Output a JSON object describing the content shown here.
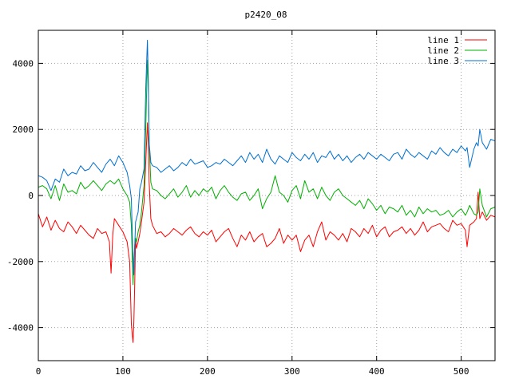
{
  "chart_data": {
    "type": "line",
    "title": "p2420_08",
    "xlabel": "",
    "ylabel": "",
    "xlim": [
      0,
      540
    ],
    "ylim": [
      -5000,
      5000
    ],
    "xticks": [
      0,
      100,
      200,
      300,
      400,
      500
    ],
    "yticks": [
      -4000,
      -2000,
      0,
      2000,
      4000
    ],
    "grid": true,
    "legend_position": "top-right",
    "series": [
      {
        "name": "line 1",
        "color": "#ff0000",
        "x": [
          0,
          5,
          10,
          15,
          20,
          25,
          30,
          35,
          40,
          45,
          50,
          55,
          60,
          65,
          70,
          75,
          80,
          84,
          86,
          88,
          90,
          95,
          100,
          105,
          108,
          110,
          112,
          113,
          114,
          115,
          116,
          118,
          120,
          122,
          125,
          127,
          129,
          130,
          131,
          133,
          135,
          140,
          145,
          150,
          155,
          160,
          165,
          170,
          175,
          180,
          185,
          190,
          195,
          200,
          205,
          210,
          215,
          220,
          225,
          230,
          235,
          240,
          245,
          250,
          255,
          260,
          265,
          270,
          275,
          280,
          285,
          290,
          295,
          300,
          305,
          310,
          315,
          320,
          325,
          330,
          335,
          340,
          345,
          350,
          355,
          360,
          365,
          370,
          375,
          380,
          385,
          390,
          395,
          400,
          405,
          410,
          415,
          420,
          425,
          430,
          435,
          440,
          445,
          450,
          455,
          460,
          465,
          470,
          475,
          480,
          485,
          490,
          495,
          500,
          505,
          507,
          510,
          515,
          518,
          520,
          522,
          525,
          530,
          535,
          540
        ],
        "y": [
          -550,
          -950,
          -650,
          -1050,
          -750,
          -1000,
          -1100,
          -800,
          -950,
          -1150,
          -900,
          -1050,
          -1200,
          -1300,
          -1000,
          -1150,
          -1100,
          -1400,
          -2350,
          -1200,
          -700,
          -900,
          -1100,
          -1400,
          -2000,
          -3900,
          -4450,
          -3800,
          -2600,
          -1300,
          -1600,
          -1400,
          -1150,
          -800,
          -200,
          1000,
          2200,
          1600,
          400,
          -700,
          -900,
          -1150,
          -1100,
          -1250,
          -1150,
          -1000,
          -1100,
          -1200,
          -1050,
          -950,
          -1150,
          -1250,
          -1100,
          -1200,
          -1050,
          -1400,
          -1250,
          -1100,
          -1000,
          -1300,
          -1550,
          -1200,
          -1350,
          -1100,
          -1400,
          -1250,
          -1150,
          -1550,
          -1450,
          -1300,
          -1000,
          -1450,
          -1200,
          -1350,
          -1200,
          -1700,
          -1350,
          -1200,
          -1550,
          -1100,
          -800,
          -1350,
          -1100,
          -1200,
          -1350,
          -1150,
          -1400,
          -1000,
          -1100,
          -1250,
          -1000,
          -1150,
          -900,
          -1250,
          -1050,
          -950,
          -1250,
          -1100,
          -1050,
          -950,
          -1150,
          -1000,
          -1200,
          -1050,
          -800,
          -1100,
          -950,
          -900,
          -850,
          -1000,
          -1100,
          -750,
          -900,
          -850,
          -1050,
          -1550,
          -900,
          -800,
          -700,
          100,
          -700,
          -500,
          -750,
          -600,
          -650
        ]
      },
      {
        "name": "line 2",
        "color": "#00b000",
        "x": [
          0,
          5,
          10,
          15,
          20,
          25,
          30,
          35,
          40,
          45,
          50,
          55,
          60,
          65,
          70,
          75,
          80,
          85,
          90,
          95,
          100,
          105,
          108,
          110,
          112,
          113,
          114,
          115,
          116,
          118,
          120,
          122,
          125,
          127,
          129,
          130,
          131,
          133,
          135,
          140,
          145,
          150,
          155,
          160,
          165,
          170,
          175,
          180,
          185,
          190,
          195,
          200,
          205,
          210,
          215,
          220,
          225,
          230,
          235,
          240,
          245,
          250,
          255,
          260,
          265,
          270,
          275,
          280,
          285,
          290,
          295,
          300,
          305,
          310,
          315,
          320,
          325,
          330,
          335,
          340,
          345,
          350,
          355,
          360,
          365,
          370,
          375,
          380,
          385,
          390,
          395,
          400,
          405,
          410,
          415,
          420,
          425,
          430,
          435,
          440,
          445,
          450,
          455,
          460,
          465,
          470,
          475,
          480,
          485,
          490,
          495,
          500,
          505,
          507,
          510,
          515,
          518,
          520,
          522,
          525,
          530,
          535,
          540
        ],
        "y": [
          250,
          300,
          200,
          -100,
          300,
          -150,
          350,
          100,
          150,
          50,
          400,
          200,
          300,
          450,
          300,
          150,
          350,
          450,
          350,
          500,
          200,
          0,
          -200,
          -900,
          -2700,
          -1900,
          -1500,
          -1300,
          -1400,
          -1100,
          -900,
          -500,
          300,
          2000,
          4100,
          3400,
          1600,
          400,
          200,
          150,
          0,
          -100,
          50,
          200,
          -50,
          100,
          300,
          -50,
          150,
          0,
          200,
          100,
          250,
          -100,
          150,
          300,
          100,
          -50,
          -150,
          50,
          100,
          -150,
          0,
          200,
          -400,
          -100,
          100,
          600,
          100,
          0,
          -200,
          150,
          300,
          -100,
          450,
          100,
          200,
          -100,
          250,
          0,
          -150,
          100,
          200,
          0,
          -100,
          -200,
          -300,
          -150,
          -400,
          -100,
          -250,
          -450,
          -300,
          -550,
          -350,
          -400,
          -500,
          -300,
          -600,
          -450,
          -650,
          -350,
          -550,
          -400,
          -500,
          -450,
          -600,
          -550,
          -450,
          -650,
          -500,
          -400,
          -600,
          -500,
          -300,
          -550,
          -600,
          -500,
          200,
          -300,
          -650,
          -400,
          -350
        ]
      },
      {
        "name": "line 3",
        "color": "#0070d0",
        "x": [
          0,
          5,
          10,
          15,
          20,
          25,
          30,
          35,
          40,
          45,
          50,
          55,
          60,
          65,
          70,
          75,
          80,
          85,
          90,
          95,
          100,
          105,
          108,
          110,
          112,
          113,
          114,
          115,
          116,
          118,
          120,
          122,
          125,
          127,
          129,
          130,
          131,
          133,
          135,
          140,
          145,
          150,
          155,
          160,
          165,
          170,
          175,
          180,
          185,
          190,
          195,
          200,
          205,
          210,
          215,
          220,
          225,
          230,
          235,
          240,
          245,
          250,
          255,
          260,
          265,
          270,
          275,
          280,
          285,
          290,
          295,
          300,
          305,
          310,
          315,
          320,
          325,
          330,
          335,
          340,
          345,
          350,
          355,
          360,
          365,
          370,
          375,
          380,
          385,
          390,
          395,
          400,
          405,
          410,
          415,
          420,
          425,
          430,
          435,
          440,
          445,
          450,
          455,
          460,
          465,
          470,
          475,
          480,
          485,
          490,
          495,
          500,
          505,
          507,
          510,
          515,
          518,
          520,
          522,
          525,
          530,
          535,
          540
        ],
        "y": [
          600,
          550,
          450,
          150,
          500,
          400,
          800,
          600,
          700,
          650,
          900,
          750,
          800,
          1000,
          850,
          700,
          950,
          1100,
          900,
          1200,
          1000,
          700,
          300,
          -100,
          -2000,
          -2400,
          -1500,
          -800,
          -700,
          -500,
          200,
          400,
          800,
          3200,
          4700,
          3600,
          1600,
          1000,
          900,
          850,
          700,
          800,
          900,
          750,
          850,
          1000,
          900,
          1100,
          950,
          1000,
          1050,
          850,
          900,
          1000,
          950,
          1100,
          1000,
          900,
          1050,
          1200,
          1000,
          1300,
          1100,
          1250,
          1000,
          1400,
          1100,
          950,
          1200,
          1100,
          1000,
          1300,
          1150,
          1050,
          1250,
          1100,
          1300,
          1000,
          1200,
          1150,
          1350,
          1100,
          1250,
          1050,
          1200,
          1000,
          1150,
          1250,
          1100,
          1300,
          1200,
          1100,
          1250,
          1150,
          1050,
          1250,
          1300,
          1100,
          1400,
          1250,
          1150,
          1300,
          1200,
          1100,
          1350,
          1250,
          1450,
          1300,
          1200,
          1400,
          1300,
          1500,
          1350,
          1450,
          850,
          1400,
          1600,
          1500,
          2000,
          1600,
          1400,
          1700,
          1650
        ]
      }
    ]
  }
}
